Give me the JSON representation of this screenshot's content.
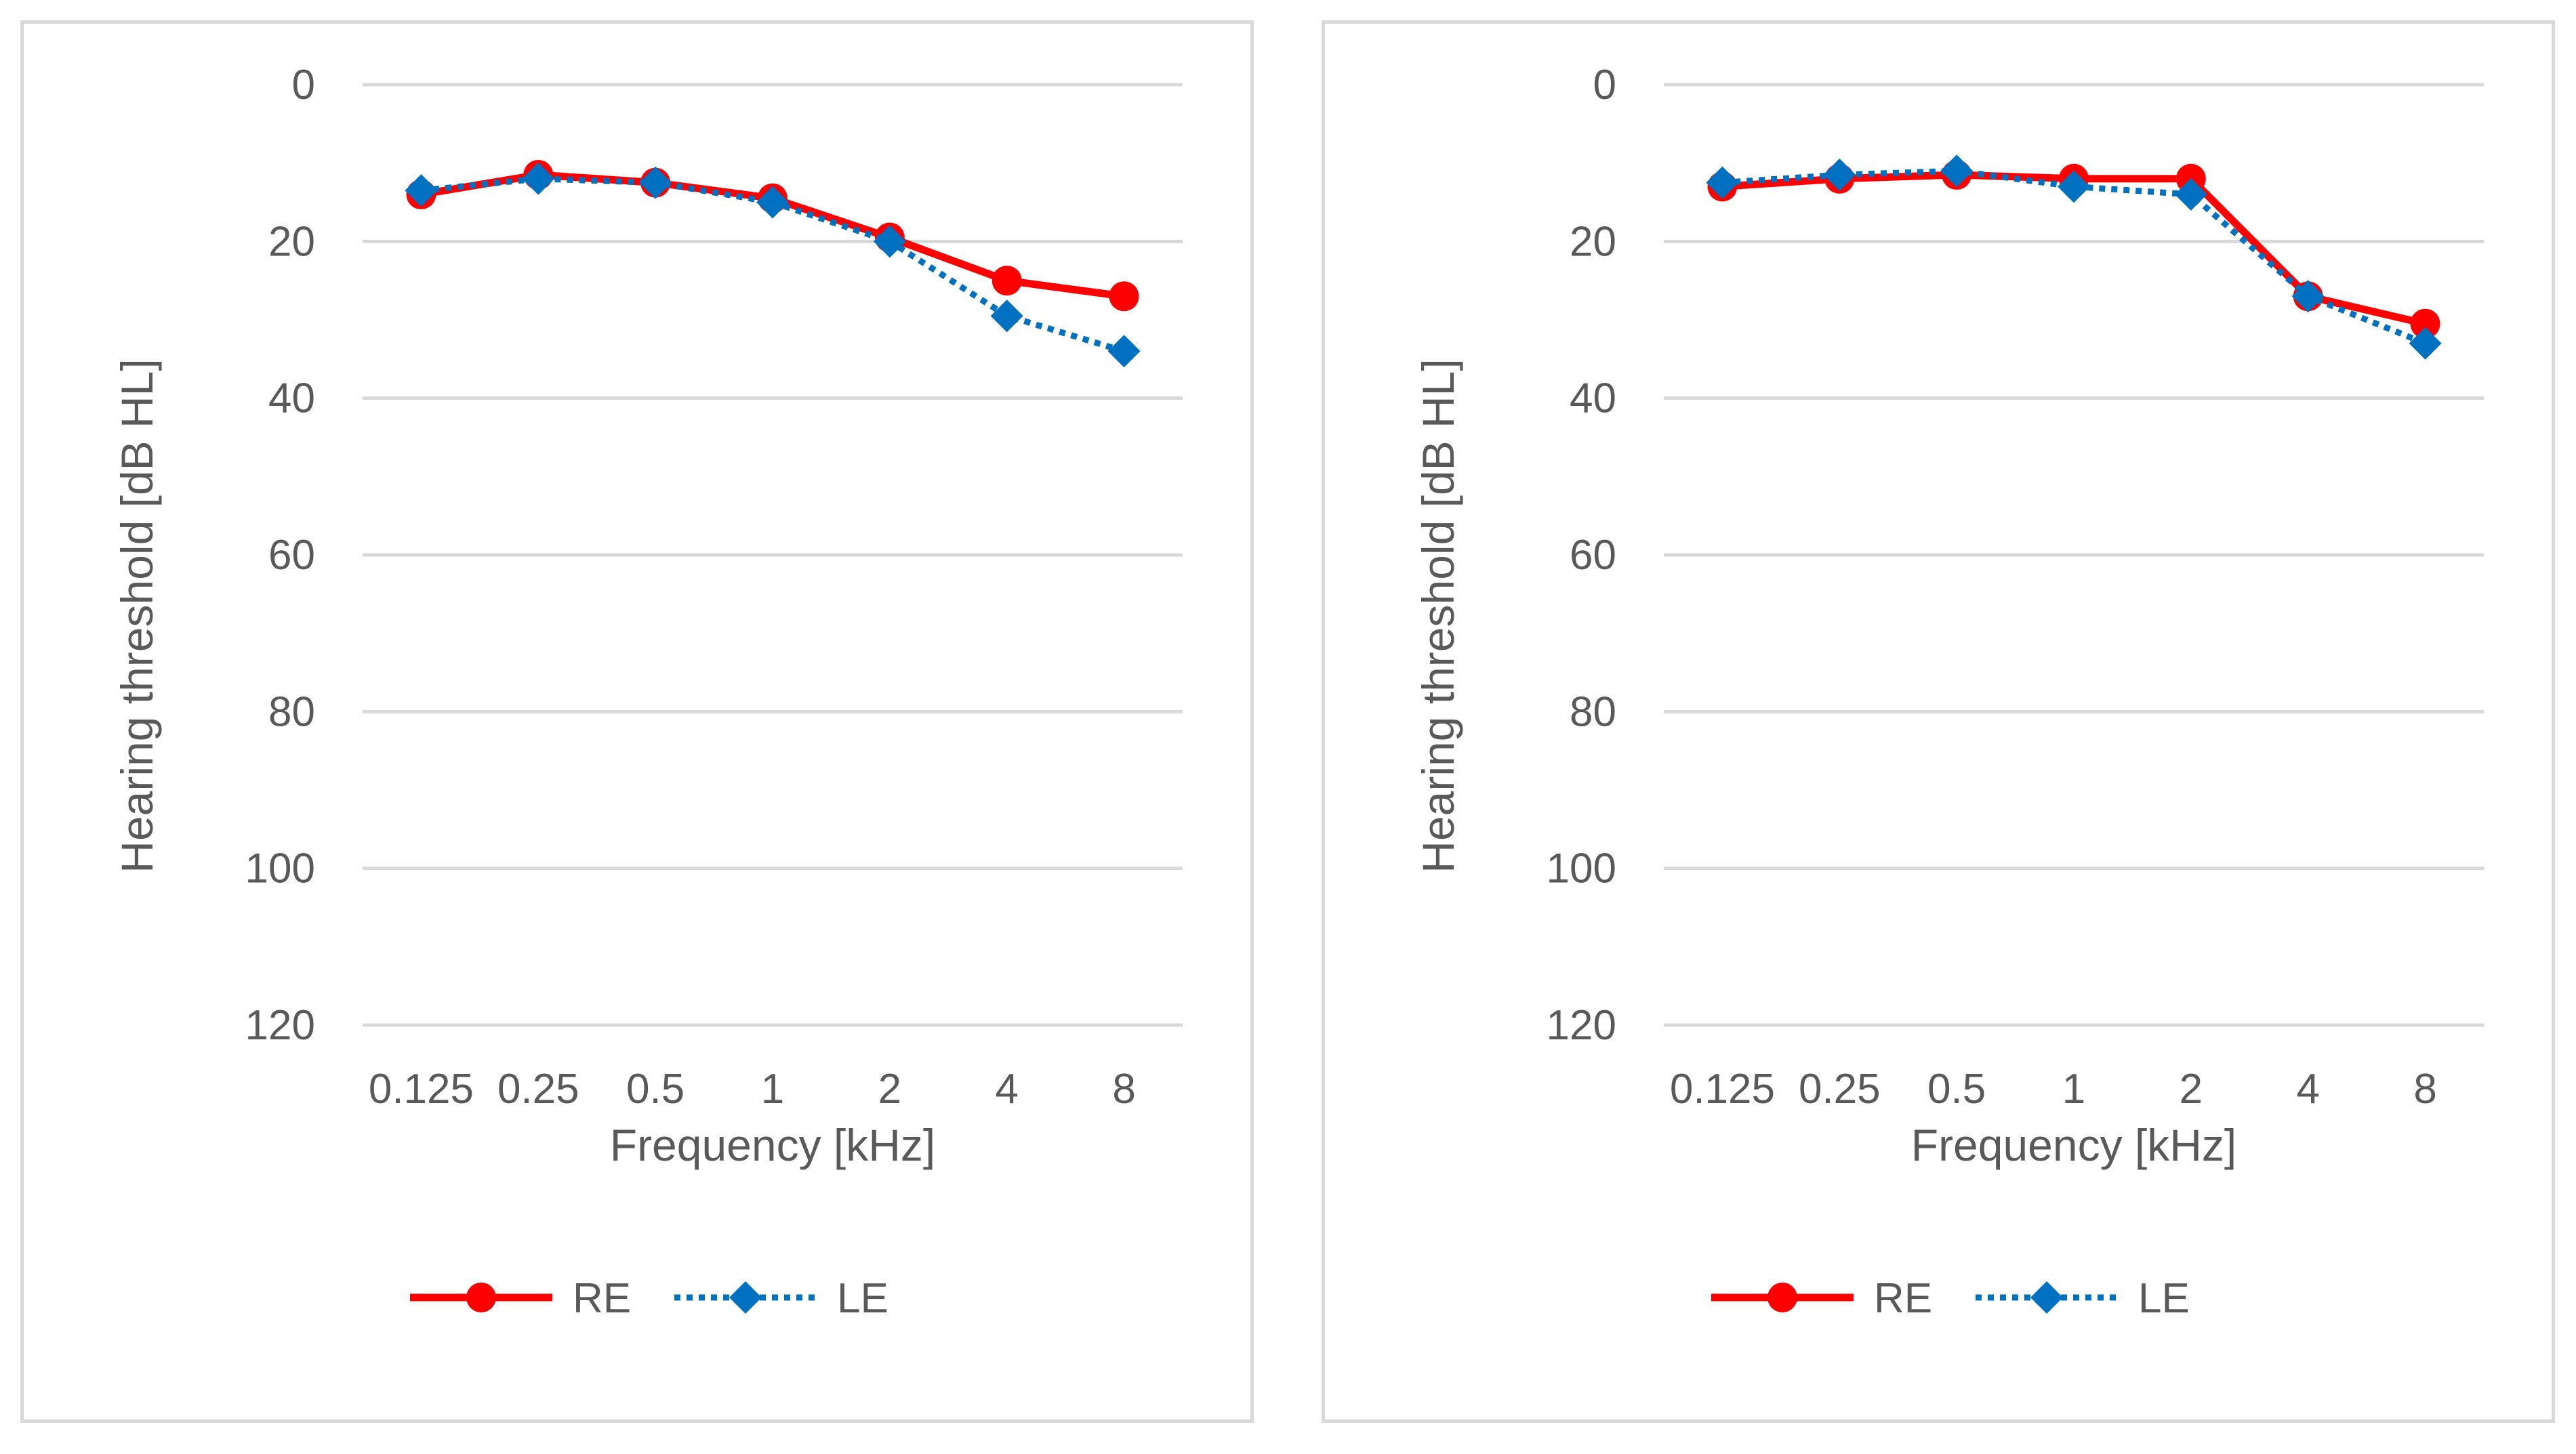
{
  "chart_data": [
    {
      "type": "line",
      "title": "",
      "xlabel": "Frequency [kHz]",
      "ylabel": "Hearing threshold [dB HL]",
      "categories": [
        "0.125",
        "0.25",
        "0.5",
        "1",
        "2",
        "4",
        "8"
      ],
      "ylim": [
        0,
        120
      ],
      "y_inverted": true,
      "yticks": [
        "0",
        "20",
        "40",
        "60",
        "80",
        "100",
        "120"
      ],
      "grid": true,
      "legend_position": "bottom-center",
      "series": [
        {
          "name": "RE",
          "color": "#ff0000",
          "style": "solid",
          "marker": "circle",
          "values": [
            14,
            11.5,
            12.5,
            14.5,
            19.5,
            25,
            27
          ]
        },
        {
          "name": "LE",
          "color": "#0070c0",
          "style": "dotted",
          "marker": "diamond",
          "values": [
            13.5,
            12,
            12.5,
            15,
            20,
            29.5,
            34
          ]
        }
      ]
    },
    {
      "type": "line",
      "title": "",
      "xlabel": "Frequency [kHz]",
      "ylabel": "Hearing threshold [dB HL]",
      "categories": [
        "0.125",
        "0.25",
        "0.5",
        "1",
        "2",
        "4",
        "8"
      ],
      "ylim": [
        0,
        120
      ],
      "y_inverted": true,
      "yticks": [
        "0",
        "20",
        "40",
        "60",
        "80",
        "100",
        "120"
      ],
      "grid": true,
      "legend_position": "bottom-center",
      "series": [
        {
          "name": "RE",
          "color": "#ff0000",
          "style": "solid",
          "marker": "circle",
          "values": [
            13,
            12,
            11.5,
            12,
            12,
            27,
            30.5
          ]
        },
        {
          "name": "LE",
          "color": "#0070c0",
          "style": "dotted",
          "marker": "diamond",
          "values": [
            12.5,
            11.5,
            11,
            13,
            14,
            27,
            33
          ]
        }
      ]
    }
  ]
}
